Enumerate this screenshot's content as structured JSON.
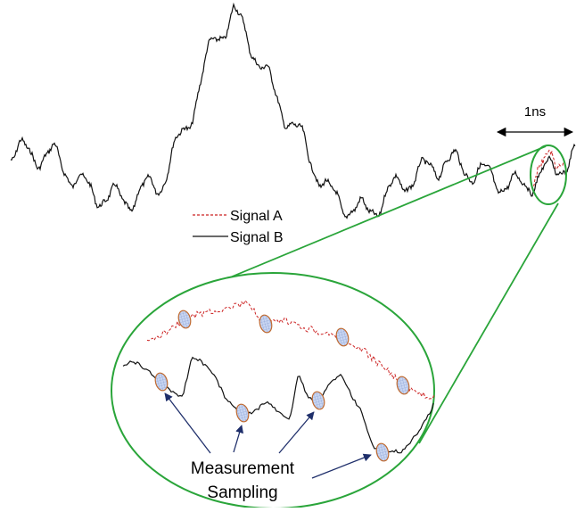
{
  "scale_label": "1ns",
  "legend": [
    {
      "name": "Signal A",
      "style": "dashed",
      "color": "#cc2222"
    },
    {
      "name": "Signal B",
      "style": "solid",
      "color": "#111111"
    }
  ],
  "annotation": {
    "line1": "Measurement",
    "line2": "Sampling"
  },
  "colors": {
    "signal_a": "#cc2222",
    "signal_b": "#111111",
    "zoom": "#2aa53a",
    "arrow": "#1f2f6b",
    "sample_fill": "#b7c7ea",
    "sample_edge": "#c06a30"
  }
}
